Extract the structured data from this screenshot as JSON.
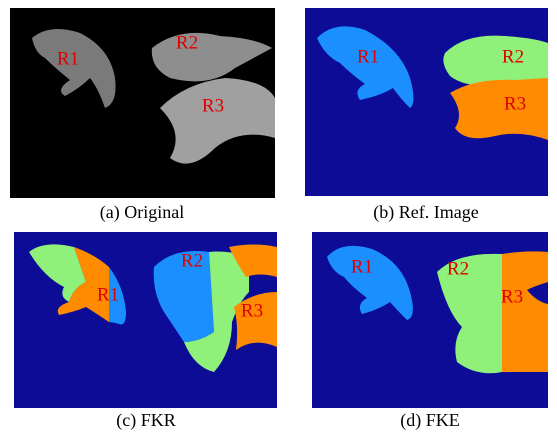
{
  "panels": [
    {
      "caption": "(a) Original",
      "regions": [
        "R1",
        "R2",
        "R3"
      ]
    },
    {
      "caption": "(b) Ref. Image",
      "regions": [
        "R1",
        "R2",
        "R3"
      ]
    },
    {
      "caption": "(c) FKR",
      "regions": [
        "R1",
        "R2",
        "R3"
      ]
    },
    {
      "caption": "(d) FKE",
      "regions": [
        "R1",
        "R2",
        "R3"
      ]
    }
  ]
}
